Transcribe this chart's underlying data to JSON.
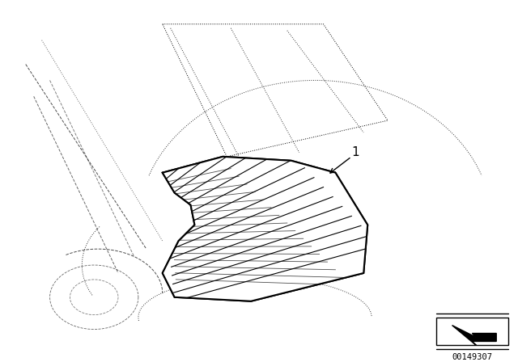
{
  "title": "",
  "bg_color": "#ffffff",
  "line_color": "#000000",
  "part_number_label": "1",
  "doc_number": "00149307",
  "fig_size": [
    6.4,
    4.48
  ],
  "dpi": 100
}
